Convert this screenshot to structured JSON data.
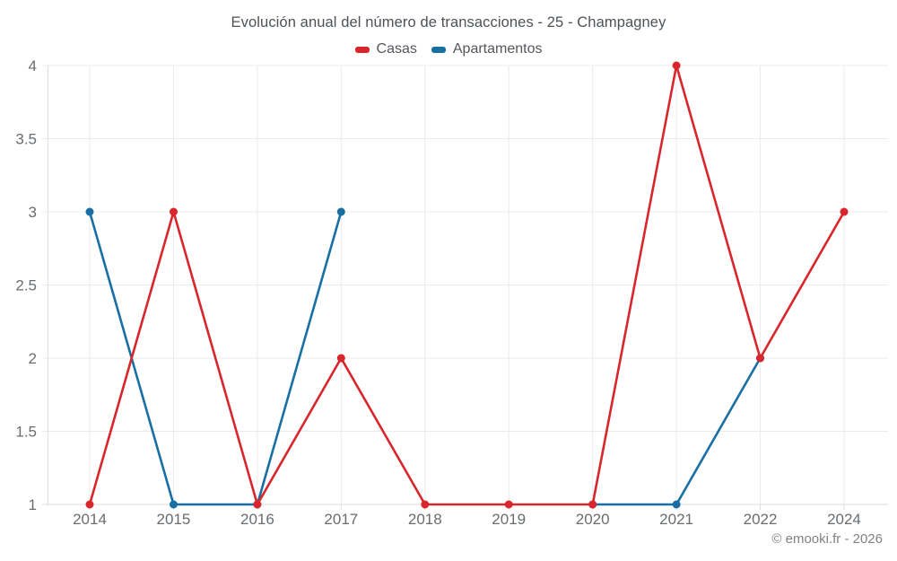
{
  "footer": {
    "credit": "© emooki.fr - 2026"
  },
  "colors": {
    "casas": "#d8262c",
    "apartamentos": "#176fa3",
    "grid": "#ebebeb",
    "axis": "#dcdcdc",
    "title_text": "#4d5257",
    "tick_text": "#696d70",
    "footer_text": "#7f8386"
  },
  "chart_data": {
    "type": "line",
    "title": "Evolución anual del número de transacciones - 25 - Champagney",
    "categories": [
      "2014",
      "2015",
      "2016",
      "2017",
      "2018",
      "2019",
      "2020",
      "2021",
      "2022",
      "2024"
    ],
    "series": [
      {
        "name": "Casas",
        "color": "#d8262c",
        "values": [
          1,
          3,
          1,
          2,
          1,
          1,
          1,
          4,
          2,
          3
        ]
      },
      {
        "name": "Apartamentos",
        "color": "#176fa3",
        "values": [
          3,
          1,
          1,
          3,
          null,
          null,
          1,
          1,
          2,
          null
        ]
      }
    ],
    "xlabel": "",
    "ylabel": "",
    "ylim": [
      1,
      4
    ],
    "yticks": [
      1,
      1.5,
      2,
      2.5,
      3,
      3.5,
      4
    ],
    "ytick_labels": [
      "1",
      "1.5",
      "2",
      "2.5",
      "3",
      "3.5",
      "4"
    ],
    "grid": true,
    "legend_position": "top"
  }
}
